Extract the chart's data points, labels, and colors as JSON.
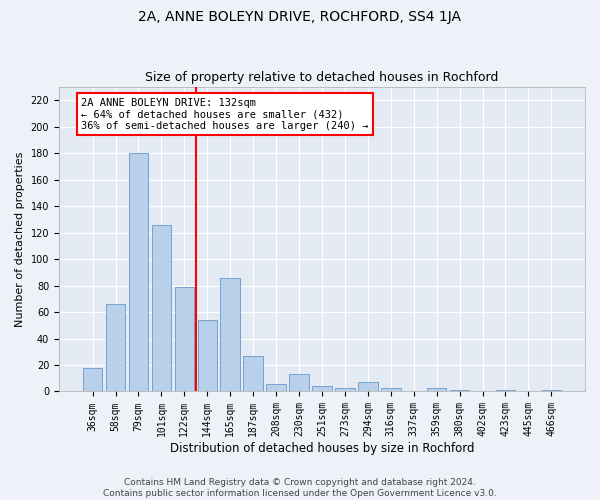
{
  "title": "2A, ANNE BOLEYN DRIVE, ROCHFORD, SS4 1JA",
  "subtitle": "Size of property relative to detached houses in Rochford",
  "xlabel": "Distribution of detached houses by size in Rochford",
  "ylabel": "Number of detached properties",
  "categories": [
    "36sqm",
    "58sqm",
    "79sqm",
    "101sqm",
    "122sqm",
    "144sqm",
    "165sqm",
    "187sqm",
    "208sqm",
    "230sqm",
    "251sqm",
    "273sqm",
    "294sqm",
    "316sqm",
    "337sqm",
    "359sqm",
    "380sqm",
    "402sqm",
    "423sqm",
    "445sqm",
    "466sqm"
  ],
  "values": [
    18,
    66,
    180,
    126,
    79,
    54,
    86,
    27,
    6,
    13,
    4,
    3,
    7,
    3,
    0,
    3,
    1,
    0,
    1,
    0,
    1
  ],
  "bar_color": "#b8d0ea",
  "bar_edge_color": "#6699cc",
  "vline_color": "red",
  "vline_pos": 4.5,
  "annotation_text": "2A ANNE BOLEYN DRIVE: 132sqm\n← 64% of detached houses are smaller (432)\n36% of semi-detached houses are larger (240) →",
  "annotation_box_color": "white",
  "annotation_box_edge_color": "red",
  "ylim": [
    0,
    230
  ],
  "yticks": [
    0,
    20,
    40,
    60,
    80,
    100,
    120,
    140,
    160,
    180,
    200,
    220
  ],
  "footer_text": "Contains HM Land Registry data © Crown copyright and database right 2024.\nContains public sector information licensed under the Open Government Licence v3.0.",
  "background_color": "#eef2f8",
  "plot_background_color": "#e4eaf4",
  "title_fontsize": 10,
  "subtitle_fontsize": 9,
  "xlabel_fontsize": 8.5,
  "ylabel_fontsize": 8,
  "tick_fontsize": 7,
  "footer_fontsize": 6.5,
  "annotation_fontsize": 7.5
}
